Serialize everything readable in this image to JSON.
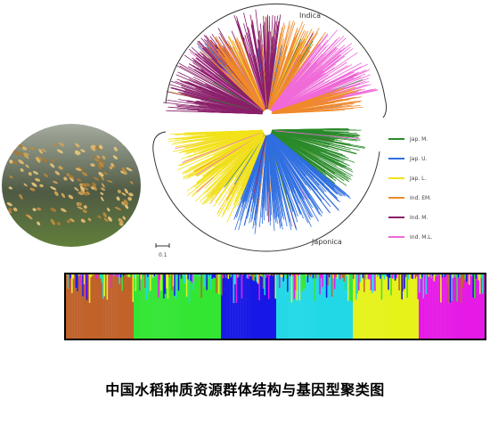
{
  "figure": {
    "caption": "中国水稻种质资源群体结构与基因型聚类图",
    "tree": {
      "top_label": "Indica",
      "bottom_label": "Japonica",
      "scale_label": "0.1"
    },
    "legend": [
      {
        "label": "Jap. M.",
        "color": "#2a8a2a"
      },
      {
        "label": "Jap. U.",
        "color": "#2f6fe0"
      },
      {
        "label": "Jap. L.",
        "color": "#f2e21a"
      },
      {
        "label": "Ind. EM.",
        "color": "#f08a2a"
      },
      {
        "label": "Ind. M.",
        "color": "#8a1f6a"
      },
      {
        "label": "Ind. M.L.",
        "color": "#f06ad8"
      }
    ],
    "structure_blocks": [
      {
        "color": "#c0622a"
      },
      {
        "color": "#33e633"
      },
      {
        "color": "#1818e6"
      },
      {
        "color": "#22d8e6"
      },
      {
        "color": "#e6f21a"
      },
      {
        "color": "#e61ae6"
      }
    ]
  }
}
